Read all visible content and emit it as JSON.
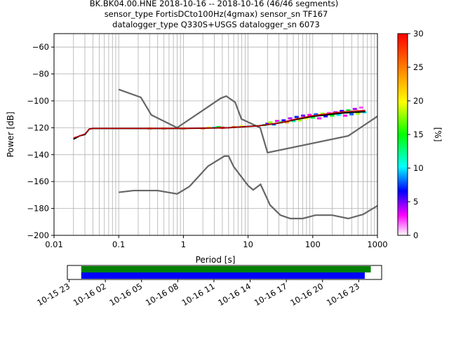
{
  "title_lines": [
    "BK.BK04.00.HNE   2018-10-16 -- 2018-10-16  (46/46 segments)",
    "sensor_type FortisDCto100Hz(4gmax) sensor_sn TF167",
    "datalogger_type Q330S+USGS datalogger_sn 6073"
  ],
  "chart_data": [
    {
      "type": "heatmap",
      "xlabel": "Period [s]",
      "ylabel": "Power [dB]",
      "x_scale": "log",
      "xlim": [
        0.01,
        1000
      ],
      "ylim": [
        -200,
        -50
      ],
      "x_ticks": [
        0.01,
        0.1,
        1,
        10,
        100,
        1000
      ],
      "x_tick_labels": [
        "0.01",
        "0.1",
        "1",
        "10",
        "100",
        "1000"
      ],
      "y_ticks": [
        -200,
        -180,
        -160,
        -140,
        -120,
        -100,
        -80,
        -60
      ],
      "y_tick_labels": [
        "−200",
        "−180",
        "−160",
        "−140",
        "−120",
        "−100",
        "−80",
        "−60"
      ],
      "grid": true,
      "colorbar": {
        "label": "[%]",
        "range": [
          0,
          30
        ],
        "ticks": [
          0,
          5,
          10,
          15,
          20,
          25,
          30
        ],
        "tick_labels": [
          "0",
          "5",
          "10",
          "15",
          "20",
          "25",
          "30"
        ],
        "colormap": "pqlx"
      },
      "noise_models": [
        {
          "name": "NHNM",
          "color": "#666666",
          "points": [
            [
              0.1,
              -91.5
            ],
            [
              0.22,
              -97.4
            ],
            [
              0.32,
              -110.5
            ],
            [
              0.8,
              -120
            ],
            [
              3.8,
              -98
            ],
            [
              4.6,
              -96.5
            ],
            [
              6.3,
              -101
            ],
            [
              7.9,
              -113.5
            ],
            [
              15.4,
              -120
            ],
            [
              20,
              -138.5
            ],
            [
              354.8,
              -126
            ],
            [
              1000,
              -111.5
            ]
          ]
        },
        {
          "name": "NLNM",
          "color": "#666666",
          "points": [
            [
              0.1,
              -168
            ],
            [
              0.17,
              -166.7
            ],
            [
              0.4,
              -166.7
            ],
            [
              0.8,
              -169.2
            ],
            [
              1.24,
              -163.7
            ],
            [
              2.4,
              -148.6
            ],
            [
              4.3,
              -141.1
            ],
            [
              5.0,
              -141.1
            ],
            [
              6.0,
              -149
            ],
            [
              10,
              -163
            ],
            [
              12,
              -166.2
            ],
            [
              15.6,
              -162.1
            ],
            [
              21.9,
              -177.5
            ],
            [
              31.6,
              -185
            ],
            [
              45,
              -187.5
            ],
            [
              70,
              -187.5
            ],
            [
              110,
              -185
            ],
            [
              200,
              -185
            ],
            [
              354.8,
              -187.5
            ],
            [
              600,
              -184.4
            ],
            [
              1000,
              -178
            ]
          ]
        }
      ],
      "psd_traces": [
        {
          "name": "mode",
          "color": "#000000",
          "points": [
            [
              0.02,
              -128.5
            ],
            [
              0.025,
              -126
            ],
            [
              0.03,
              -125
            ],
            [
              0.035,
              -121
            ],
            [
              0.04,
              -120.5
            ],
            [
              1,
              -120.5
            ],
            [
              5,
              -120
            ],
            [
              15,
              -118.5
            ],
            [
              30,
              -116.5
            ],
            [
              60,
              -113.5
            ],
            [
              100,
              -111.5
            ],
            [
              300,
              -109
            ],
            [
              650,
              -108
            ]
          ]
        },
        {
          "name": "ridge-red",
          "color": "#cc0000",
          "points": [
            [
              0.02,
              -127.5
            ],
            [
              0.025,
              -126
            ],
            [
              0.03,
              -124.5
            ],
            [
              0.035,
              -121
            ],
            [
              0.04,
              -120.5
            ],
            [
              1,
              -120.5
            ],
            [
              5,
              -120
            ],
            [
              15,
              -118.5
            ],
            [
              30,
              -116.5
            ],
            [
              60,
              -113
            ],
            [
              100,
              -111
            ],
            [
              300,
              -108
            ],
            [
              650,
              -107
            ]
          ]
        }
      ],
      "heat_cells": [
        [
          0.3,
          -120.5,
          25
        ],
        [
          0.5,
          -120.5,
          25
        ],
        [
          1.0,
          -120.5,
          25
        ],
        [
          2.0,
          -120.5,
          25
        ],
        [
          2.5,
          -120,
          20
        ],
        [
          3.0,
          -120,
          10
        ],
        [
          3.5,
          -119.5,
          15
        ],
        [
          4.0,
          -120,
          30
        ],
        [
          6.0,
          -119.5,
          25
        ],
        [
          8.0,
          -119,
          20
        ],
        [
          17.9,
          -118,
          12
        ],
        [
          20.0,
          -117,
          5
        ],
        [
          22.1,
          -116,
          18
        ],
        [
          25.1,
          -117.5,
          8
        ],
        [
          28.2,
          -115,
          3
        ],
        [
          31.6,
          -116,
          14
        ],
        [
          35.5,
          -114.5,
          6
        ],
        [
          39.8,
          -116,
          24
        ],
        [
          44.7,
          -113,
          4
        ],
        [
          50.1,
          -115,
          12
        ],
        [
          56.2,
          -112,
          7
        ],
        [
          63.1,
          -114.5,
          18
        ],
        [
          70.8,
          -111,
          5
        ],
        [
          79.4,
          -113,
          20
        ],
        [
          89.1,
          -110.5,
          3
        ],
        [
          100,
          -112.5,
          14
        ],
        [
          112,
          -110,
          8
        ],
        [
          126,
          -113,
          3
        ],
        [
          141,
          -109.5,
          18
        ],
        [
          158,
          -111.5,
          6
        ],
        [
          178,
          -109,
          2
        ],
        [
          200,
          -111,
          15
        ],
        [
          224,
          -108.5,
          4
        ],
        [
          251,
          -110.5,
          10
        ],
        [
          282,
          -107.5,
          6
        ],
        [
          316,
          -111,
          3
        ],
        [
          355,
          -107,
          14
        ],
        [
          398,
          -110,
          8
        ],
        [
          447,
          -106,
          4
        ],
        [
          501,
          -109.5,
          18
        ],
        [
          562,
          -105,
          2
        ],
        [
          631,
          -108.5,
          10
        ]
      ]
    },
    {
      "type": "timeline",
      "x_tick_labels": [
        "10-15 23",
        "10-16 02",
        "10-16 05",
        "10-16 08",
        "10-16 11",
        "10-16 14",
        "10-16 17",
        "10-16 20",
        "10-16 23"
      ],
      "x_tick_hours": [
        -1,
        2,
        5,
        8,
        11,
        14,
        17,
        20,
        23
      ],
      "xlim_hours": [
        -1.15,
        24.9
      ],
      "bars": [
        {
          "name": "data-coverage",
          "color": "#008000",
          "start_hours": 0.0,
          "end_hours": 24.0
        },
        {
          "name": "psd-segments",
          "color": "#0000ff",
          "start_hours": 0.0,
          "end_hours": 23.5
        }
      ]
    }
  ]
}
